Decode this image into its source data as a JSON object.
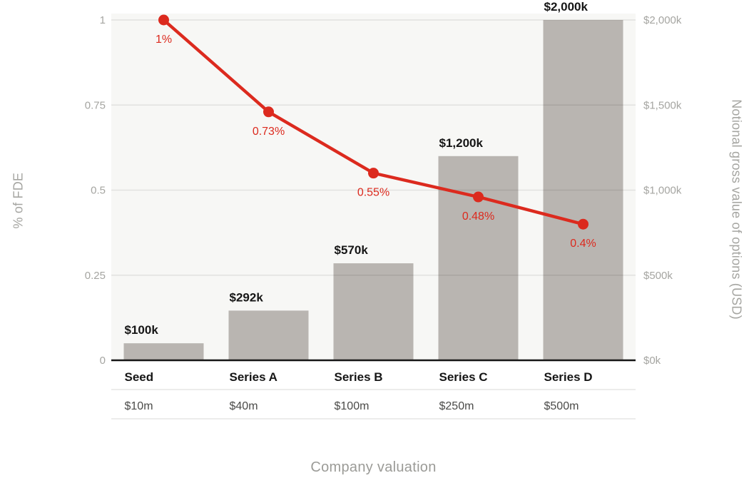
{
  "chart_data": {
    "type": "combo-bar-line",
    "categories": [
      "Seed",
      "Series A",
      "Series B",
      "Series C",
      "Series D"
    ],
    "valuation_row": [
      "$10m",
      "$40m",
      "$100m",
      "$250m",
      "$500m"
    ],
    "series": [
      {
        "name": "Notional gross value of options (USD)",
        "type": "bar",
        "axis": "right",
        "values": [
          100,
          292,
          570,
          1200,
          2000
        ],
        "labels": [
          "$100k",
          "$292k",
          "$570k",
          "$1,200k",
          "$2,000k"
        ]
      },
      {
        "name": "% of FDE",
        "type": "line",
        "axis": "left",
        "values": [
          1,
          0.73,
          0.55,
          0.48,
          0.4
        ],
        "labels": [
          "1%",
          "0.73%",
          "0.55%",
          "0.48%",
          "0.4%"
        ]
      }
    ],
    "left_axis": {
      "title": "% of FDE",
      "range": [
        0,
        1
      ],
      "ticks": [
        0,
        0.25,
        0.5,
        0.75,
        1
      ],
      "tick_labels": [
        "0",
        "0.25",
        "0.5",
        "0.75",
        "1"
      ]
    },
    "right_axis": {
      "title": "Notional gross value of options (USD)",
      "range": [
        0,
        2000
      ],
      "ticks": [
        0,
        500,
        1000,
        1500,
        2000
      ],
      "tick_labels": [
        "$0k",
        "$500k",
        "$1,000k",
        "$1,500k",
        "$2,000k"
      ]
    },
    "xlabel": "Company valuation",
    "grid": true,
    "legend_position": "none"
  },
  "colors": {
    "bar": "#b9b5b1",
    "line": "#dc2a1e",
    "plot_background": "#f7f7f5",
    "gridline": "rgba(0,0,0,0.085)",
    "baseline": "#161616",
    "axis_tick_text": "#a5a5a1",
    "bar_label_text": "#161616",
    "category_text": "#161616",
    "table_value_text": "#4b4b49",
    "table_divider": "#e1e1df"
  }
}
